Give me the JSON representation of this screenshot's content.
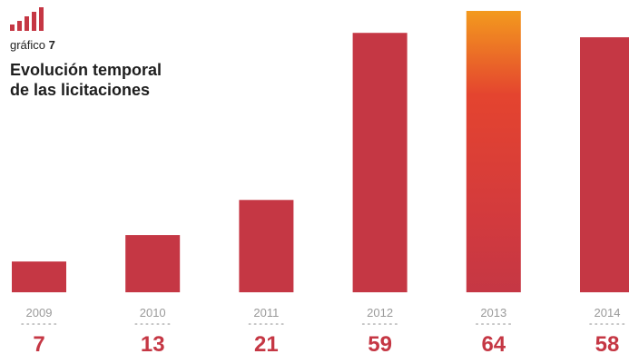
{
  "header": {
    "chart_word": "gráfico",
    "chart_number": "7",
    "title_line1": "Evolución temporal",
    "title_line2": "de las licitaciones"
  },
  "colors": {
    "bar": "#c53744",
    "value_text": "#c53744",
    "highlight_top": "#f39a1e",
    "highlight_mid": "#e4442f",
    "category_text": "#9a9a9a"
  },
  "icons": {
    "logo": "bar-chart-icon"
  },
  "chart_data": {
    "type": "bar",
    "categories": [
      "2009",
      "2010",
      "2011",
      "2012",
      "2013",
      "2014"
    ],
    "values": [
      7,
      13,
      21,
      59,
      64,
      58
    ],
    "highlight_category": "2013",
    "title": "Evolución temporal de las licitaciones",
    "xlabel": "",
    "ylabel": "",
    "ylim": [
      0,
      64
    ],
    "grid": false,
    "legend": "none"
  }
}
